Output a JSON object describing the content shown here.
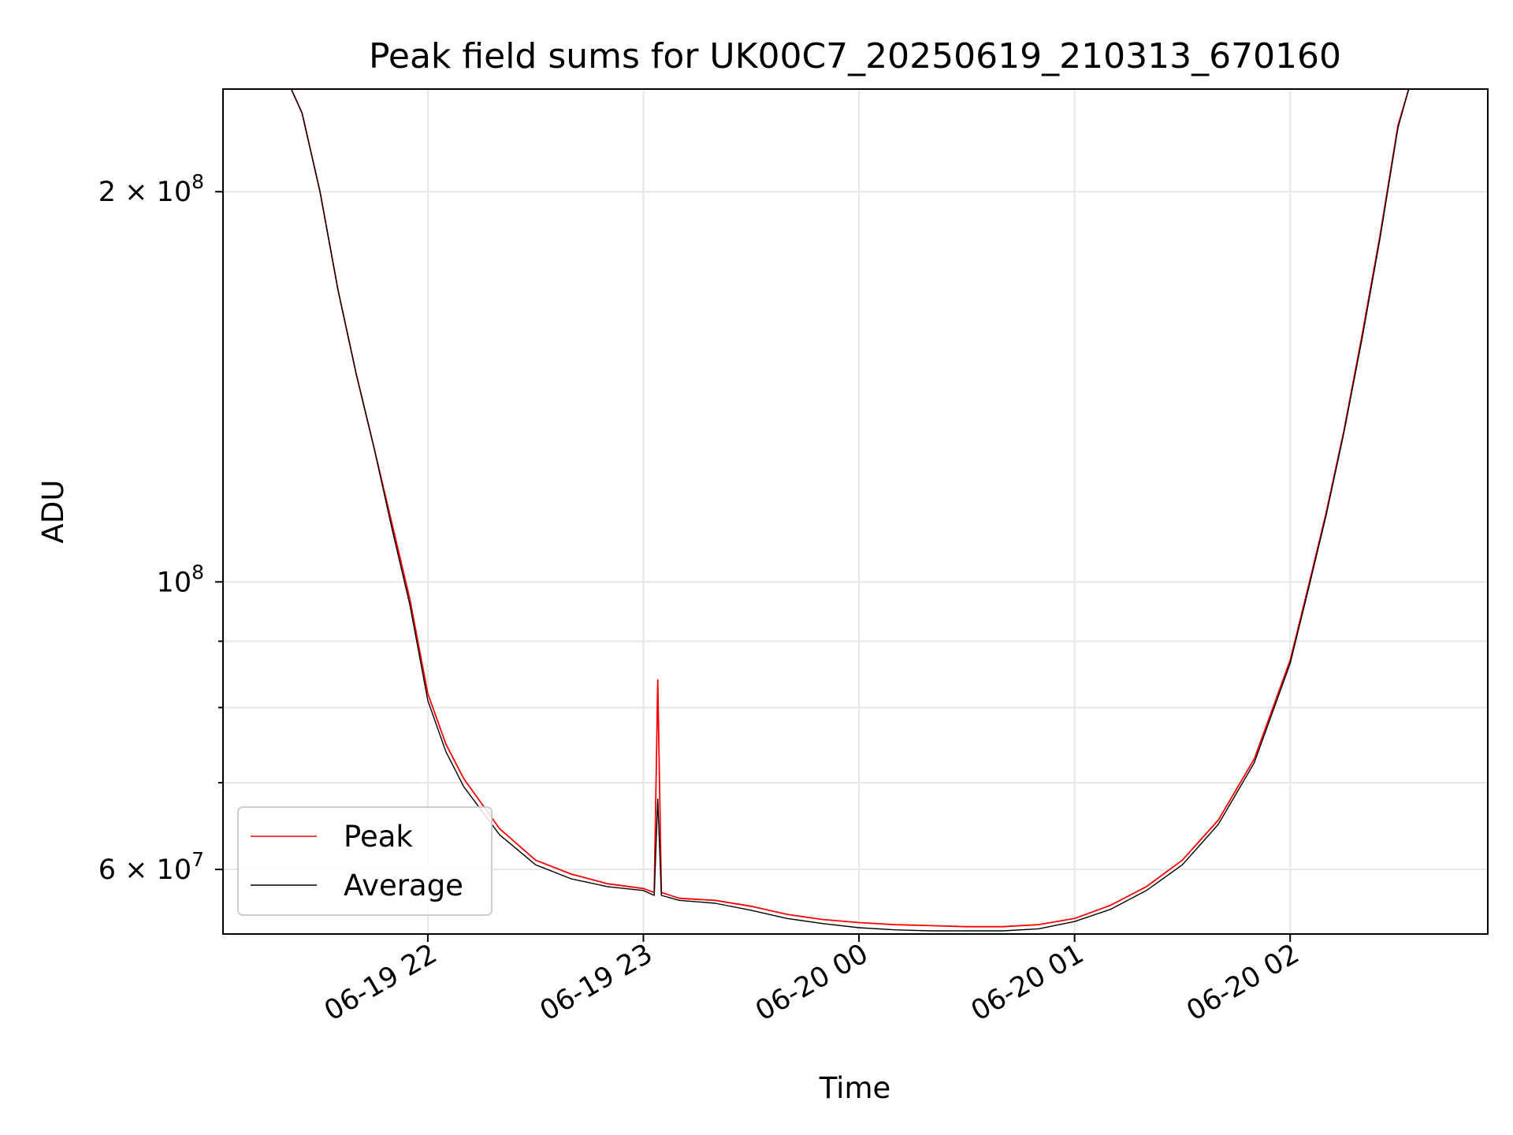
{
  "chart_data": {
    "type": "line",
    "title": "Peak field sums for UK00C7_20250619_210313_670160",
    "xlabel": "Time",
    "ylabel": "ADU",
    "yscale": "log",
    "ylim": [
      53500000,
      240000000
    ],
    "xlim": [
      "2025-06-19 21:03",
      "2025-06-20 02:55"
    ],
    "grid": true,
    "legend_position": "lower-left",
    "x_ticks": [
      {
        "value": "2025-06-19 22:00",
        "label": "06-19 22"
      },
      {
        "value": "2025-06-19 23:00",
        "label": "06-19 23"
      },
      {
        "value": "2025-06-20 00:00",
        "label": "06-20 00"
      },
      {
        "value": "2025-06-20 01:00",
        "label": "06-20 01"
      },
      {
        "value": "2025-06-20 02:00",
        "label": "06-20 02"
      }
    ],
    "y_ticks": [
      {
        "value": 60000000,
        "label": "6 × 10",
        "exp": "7"
      },
      {
        "value": 100000000,
        "label": "10",
        "exp": "8"
      },
      {
        "value": 200000000,
        "label": "2 × 10",
        "exp": "8"
      }
    ],
    "y_minor_ticks": [
      70000000,
      80000000,
      90000000
    ],
    "series": [
      {
        "name": "Peak",
        "color": "#ff0000",
        "x": [
          "2025-06-19 21:22",
          "2025-06-19 21:25",
          "2025-06-19 21:30",
          "2025-06-19 21:35",
          "2025-06-19 21:40",
          "2025-06-19 21:45",
          "2025-06-19 21:50",
          "2025-06-19 21:55",
          "2025-06-19 22:00",
          "2025-06-19 22:05",
          "2025-06-19 22:10",
          "2025-06-19 22:20",
          "2025-06-19 22:30",
          "2025-06-19 22:40",
          "2025-06-19 22:50",
          "2025-06-19 23:00",
          "2025-06-19 23:03",
          "2025-06-19 23:04",
          "2025-06-19 23:05",
          "2025-06-19 23:10",
          "2025-06-19 23:20",
          "2025-06-19 23:30",
          "2025-06-19 23:40",
          "2025-06-19 23:50",
          "2025-06-20 00:00",
          "2025-06-20 00:10",
          "2025-06-20 00:20",
          "2025-06-20 00:30",
          "2025-06-20 00:40",
          "2025-06-20 00:50",
          "2025-06-20 01:00",
          "2025-06-20 01:10",
          "2025-06-20 01:20",
          "2025-06-20 01:30",
          "2025-06-20 01:40",
          "2025-06-20 01:50",
          "2025-06-20 02:00",
          "2025-06-20 02:05",
          "2025-06-20 02:10",
          "2025-06-20 02:15",
          "2025-06-20 02:20",
          "2025-06-20 02:25",
          "2025-06-20 02:30",
          "2025-06-20 02:33"
        ],
        "values": [
          240000000,
          230000000,
          200000000,
          168000000,
          145000000,
          127000000,
          111000000,
          97000000,
          82000000,
          75000000,
          70500000,
          64500000,
          61000000,
          59500000,
          58500000,
          58000000,
          57600000,
          84000000,
          57600000,
          57000000,
          56800000,
          56200000,
          55400000,
          54900000,
          54600000,
          54400000,
          54300000,
          54200000,
          54200000,
          54400000,
          55000000,
          56300000,
          58200000,
          61000000,
          65500000,
          73000000,
          87000000,
          99000000,
          113000000,
          131000000,
          155000000,
          185000000,
          225000000,
          240000000
        ]
      },
      {
        "name": "Average",
        "color": "#000000",
        "x": [
          "2025-06-19 21:22",
          "2025-06-19 21:25",
          "2025-06-19 21:30",
          "2025-06-19 21:35",
          "2025-06-19 21:40",
          "2025-06-19 21:45",
          "2025-06-19 21:50",
          "2025-06-19 21:55",
          "2025-06-19 22:00",
          "2025-06-19 22:05",
          "2025-06-19 22:10",
          "2025-06-19 22:20",
          "2025-06-19 22:30",
          "2025-06-19 22:40",
          "2025-06-19 22:50",
          "2025-06-19 23:00",
          "2025-06-19 23:03",
          "2025-06-19 23:04",
          "2025-06-19 23:05",
          "2025-06-19 23:10",
          "2025-06-19 23:20",
          "2025-06-19 23:30",
          "2025-06-19 23:40",
          "2025-06-19 23:50",
          "2025-06-20 00:00",
          "2025-06-20 00:10",
          "2025-06-20 00:20",
          "2025-06-20 00:30",
          "2025-06-20 00:40",
          "2025-06-20 00:50",
          "2025-06-20 01:00",
          "2025-06-20 01:10",
          "2025-06-20 01:20",
          "2025-06-20 01:30",
          "2025-06-20 01:40",
          "2025-06-20 01:50",
          "2025-06-20 02:00",
          "2025-06-20 02:05",
          "2025-06-20 02:10",
          "2025-06-20 02:15",
          "2025-06-20 02:20",
          "2025-06-20 02:25",
          "2025-06-20 02:30",
          "2025-06-20 02:33"
        ],
        "values": [
          240000000,
          230000000,
          200000000,
          168000000,
          145000000,
          127000000,
          110000000,
          96000000,
          81000000,
          74000000,
          69500000,
          63800000,
          60500000,
          59000000,
          58200000,
          57800000,
          57300000,
          68000000,
          57300000,
          56800000,
          56500000,
          55800000,
          55000000,
          54500000,
          54100000,
          53900000,
          53800000,
          53800000,
          53800000,
          54000000,
          54700000,
          55900000,
          57800000,
          60500000,
          65000000,
          72500000,
          86500000,
          98500000,
          112500000,
          130500000,
          154000000,
          184000000,
          224000000,
          240000000
        ]
      }
    ]
  }
}
